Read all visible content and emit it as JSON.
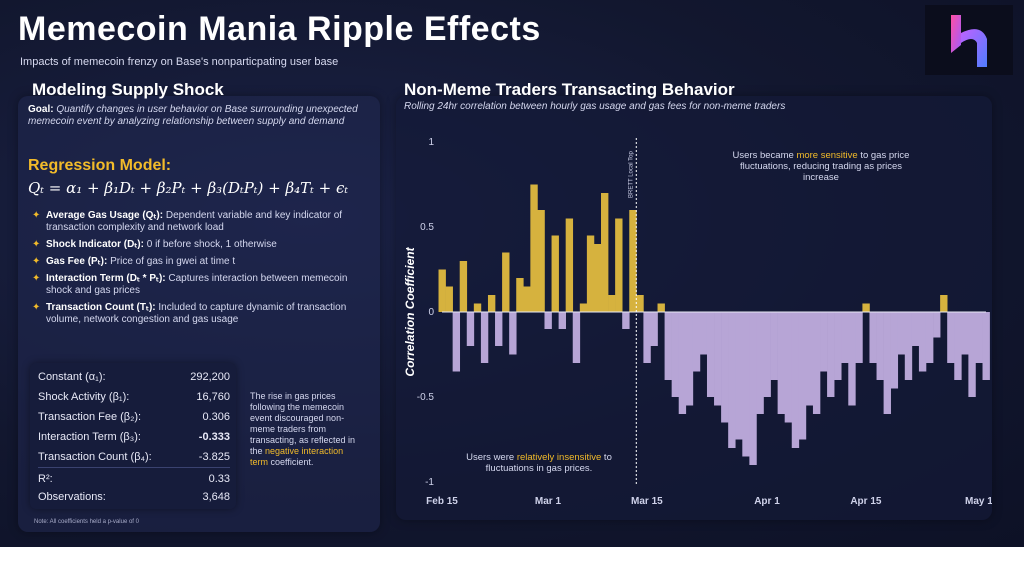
{
  "header": {
    "title": "Memecoin Mania Ripple Effects",
    "subtitle": "Impacts of memecoin frenzy on Base's nonparticpating user base"
  },
  "left": {
    "heading": "Modeling Supply Shock",
    "goal_label": "Goal:",
    "goal_text": "Quantify changes in user behavior on Base surrounding unexpected memecoin event by analyzing relationship between supply and demand",
    "regression_title": "Regression Model:",
    "equation": "Qₜ = α₁ + β₁Dₜ + β₂Pₜ + β₃(DₜPₜ) + β₄Tₜ + ϵₜ",
    "bullets": [
      {
        "term": "Average Gas Usage (Qₜ):",
        "text": " Dependent variable and key indicator of transaction complexity and network load"
      },
      {
        "term": "Shock Indicator (Dₜ):",
        "text": " 0 if before shock, 1 otherwise"
      },
      {
        "term": "Gas Fee (Pₜ):",
        "text": " Price of gas in gwei at time t"
      },
      {
        "term": "Interaction Term (Dₜ * Pₜ):",
        "text": " Captures interaction between memecoin shock and gas prices"
      },
      {
        "term": "Transaction Count (Tₜ):",
        "text": " Included to capture dynamic of transaction volume, network congestion and gas usage"
      }
    ],
    "table": [
      {
        "label": "Constant (α₁):",
        "value": "292,200"
      },
      {
        "label": "Shock Activity (β₁):",
        "value": "16,760"
      },
      {
        "label": "Transaction Fee  (β₂):",
        "value": "0.306"
      },
      {
        "label": "Interaction Term  (β₃):",
        "value": "-0.333"
      },
      {
        "label": "Transaction Count  (β₄):",
        "value": "-3.825"
      },
      {
        "label": "R²:",
        "value": "0.33"
      },
      {
        "label": "Observations:",
        "value": "3,648"
      }
    ],
    "note_text": "The rise in gas prices following the memecoin event discouraged non-meme traders from transacting, as reflected in the",
    "note_highlight": "negative interaction term",
    "note_end": " coefficient.",
    "footnote": "Note: All coefficients held a p-value of 0"
  },
  "right": {
    "heading": "Non-Meme Traders Transacting Behavior",
    "subtitle": "Rolling 24hr correlation between hourly gas usage and gas fees for non-meme traders"
  },
  "chart_data": {
    "type": "area",
    "title": "",
    "xlabel": "",
    "ylabel": "Correlation Coefficient",
    "ylim": [
      -1,
      1
    ],
    "yticks": [
      1,
      0.5,
      0,
      -0.5,
      -1
    ],
    "ytick_labels": [
      "1",
      "0.5",
      "0",
      "-0.5",
      "-1"
    ],
    "xticks": [
      "Feb 15",
      "Mar 1",
      "Mar 15",
      "Apr 1",
      "Apr 15",
      "May 1"
    ],
    "xtick_days": [
      0,
      15,
      29,
      46,
      60,
      76
    ],
    "xlim_days": [
      0,
      77
    ],
    "grid": false,
    "vline": {
      "day": 27.5,
      "label": "BRETT Local Top"
    },
    "annotation_top": {
      "pre": "Users became ",
      "hl": "more sensitive",
      "post": " to gas price fluctuations, reducing trading as prices increase"
    },
    "annotation_bottom": {
      "pre": "Users were ",
      "hl": "relatively insensitive",
      "post": " to fluctuations in gas prices."
    },
    "colors": {
      "positive": "#d6b23e",
      "negative": "#b7a5d6",
      "highlight": "#f2bb2a",
      "axis": "#cfd2ea"
    },
    "series": [
      {
        "x": [
          0,
          1,
          2,
          3,
          4,
          5,
          6,
          7,
          8,
          9,
          10,
          11,
          12,
          13,
          14,
          15,
          16,
          17,
          18,
          19,
          20,
          21,
          22,
          23,
          24,
          25,
          26,
          27,
          28,
          29,
          30,
          31,
          32,
          33,
          34,
          35,
          36,
          37,
          38,
          39,
          40,
          41,
          42,
          43,
          44,
          45,
          46,
          47,
          48,
          49,
          50,
          51,
          52,
          53,
          54,
          55,
          56,
          57,
          58,
          59,
          60,
          61,
          62,
          63,
          64,
          65,
          66,
          67,
          68,
          69,
          70,
          71,
          72,
          73,
          74,
          75,
          76,
          77
        ],
        "y": [
          0.25,
          0.15,
          -0.35,
          0.3,
          -0.2,
          0.05,
          -0.3,
          0.1,
          -0.2,
          0.35,
          -0.25,
          0.2,
          0.15,
          0.75,
          0.6,
          -0.1,
          0.45,
          -0.1,
          0.55,
          -0.3,
          0.05,
          0.45,
          0.4,
          0.7,
          0.1,
          0.55,
          -0.1,
          0.6,
          0.1,
          -0.3,
          -0.2,
          0.05,
          -0.4,
          -0.5,
          -0.6,
          -0.55,
          -0.35,
          -0.25,
          -0.5,
          -0.55,
          -0.65,
          -0.8,
          -0.75,
          -0.85,
          -0.9,
          -0.6,
          -0.5,
          -0.4,
          -0.6,
          -0.65,
          -0.8,
          -0.75,
          -0.55,
          -0.6,
          -0.35,
          -0.5,
          -0.4,
          -0.3,
          -0.55,
          -0.3,
          0.05,
          -0.3,
          -0.4,
          -0.6,
          -0.45,
          -0.25,
          -0.4,
          -0.2,
          -0.35,
          -0.3,
          -0.15,
          0.1,
          -0.3,
          -0.4,
          -0.25,
          -0.5,
          -0.3,
          -0.4
        ]
      }
    ]
  }
}
